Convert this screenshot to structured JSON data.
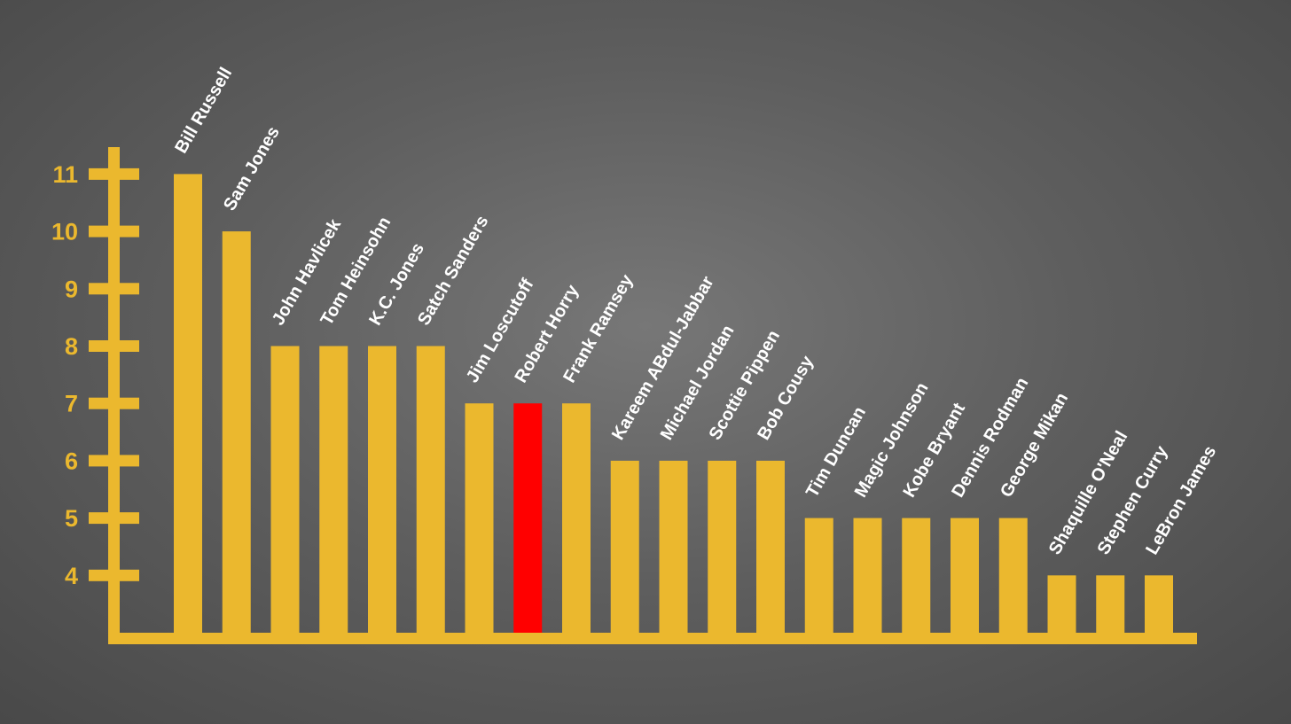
{
  "chart_data": {
    "type": "bar",
    "title": "",
    "xlabel": "",
    "ylabel": "",
    "categories": [
      "Bill Russell",
      "Sam Jones",
      "John Havlicek",
      "Tom Heinsohn",
      "K.C. Jones",
      "Satch Sanders",
      "Jim Loscutoff",
      "Robert Horry",
      "Frank Ramsey",
      "Kareem ABdul-Jabbar",
      "Michael Jordan",
      "Scottie Pippen",
      "Bob Cousy",
      "Tim Duncan",
      "Magic Johnson",
      "Kobe Bryant",
      "Dennis Rodman",
      "George Mikan",
      "Shaquille O'Neal",
      "Stephen Curry",
      "LeBron James"
    ],
    "values": [
      11,
      10,
      8,
      8,
      8,
      8,
      7,
      7,
      7,
      6,
      6,
      6,
      6,
      5,
      5,
      5,
      5,
      5,
      4,
      4,
      4
    ],
    "highlight_index": 7,
    "yticks": [
      4,
      5,
      6,
      7,
      8,
      9,
      10,
      11
    ],
    "ylim": [
      3,
      11
    ],
    "grid": false,
    "legend": "none"
  },
  "colors": {
    "bar": "#ebb82e",
    "highlight": "#ff0000",
    "axis": "#ebb82e",
    "tick_label": "#ebb82e",
    "category_label": "#ffffff"
  }
}
